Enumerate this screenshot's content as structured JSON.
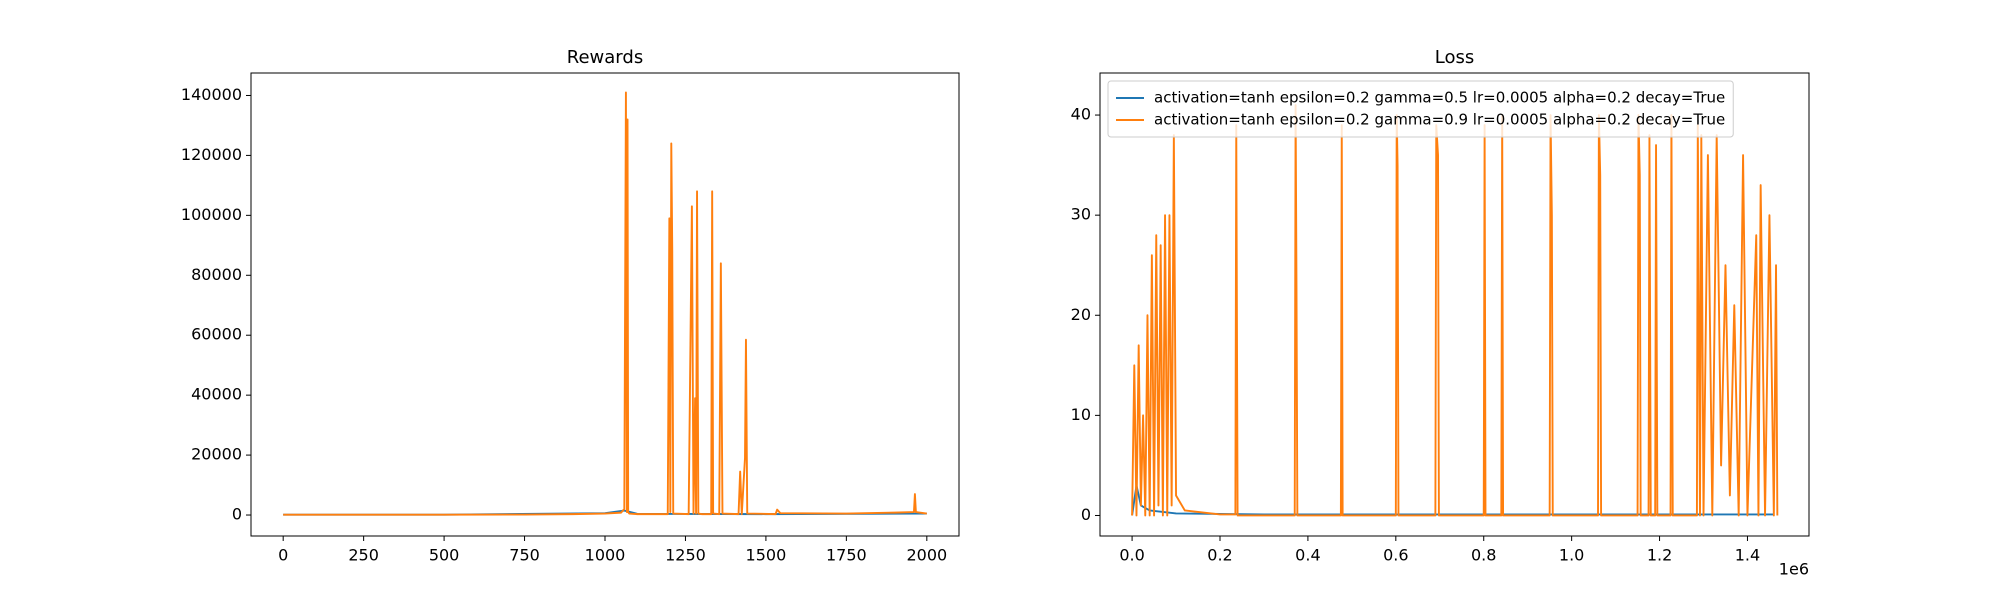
{
  "chart_data": [
    {
      "type": "line",
      "title": "Rewards",
      "xlim": [
        -100,
        2100
      ],
      "ylim": [
        -7000,
        147500
      ],
      "xticks": [
        0,
        250,
        500,
        750,
        1000,
        1250,
        1500,
        1750,
        2000
      ],
      "yticks": [
        0,
        20000,
        40000,
        60000,
        80000,
        100000,
        120000,
        140000
      ],
      "series": [
        {
          "color": "#1f77b4",
          "x": [
            0,
            500,
            1000,
            1060,
            1100,
            1500,
            1800,
            2000
          ],
          "values": [
            100,
            100,
            600,
            1500,
            400,
            300,
            400,
            500
          ]
        },
        {
          "color": "#ff7f0e",
          "x": [
            0,
            250,
            500,
            750,
            900,
            1000,
            1050,
            1060,
            1065,
            1068,
            1070,
            1072,
            1075,
            1100,
            1195,
            1200,
            1203,
            1206,
            1209,
            1212,
            1260,
            1270,
            1275,
            1280,
            1283,
            1286,
            1290,
            1300,
            1330,
            1333,
            1336,
            1355,
            1360,
            1365,
            1415,
            1420,
            1425,
            1435,
            1438,
            1442,
            1530,
            1535,
            1545,
            1750,
            1900,
            1960,
            1963,
            1966,
            2000
          ],
          "values": [
            100,
            100,
            100,
            150,
            300,
            500,
            800,
            2000,
            141000,
            1000,
            132000,
            1000,
            500,
            300,
            300,
            99000,
            1000,
            124000,
            88000,
            500,
            300,
            103000,
            500,
            39000,
            500,
            108000,
            500,
            300,
            300,
            108000,
            500,
            300,
            84000,
            500,
            300,
            14500,
            300,
            19000,
            58500,
            500,
            300,
            1800,
            600,
            500,
            800,
            1000,
            7000,
            1000,
            500
          ]
        }
      ]
    },
    {
      "type": "line",
      "title": "Loss",
      "xlim": [
        -73000,
        1540000
      ],
      "ylim": [
        -2.05,
        44.2
      ],
      "xticks": [
        {
          "value": 0,
          "label": "0.0"
        },
        {
          "value": 200000,
          "label": "0.2"
        },
        {
          "value": 400000,
          "label": "0.4"
        },
        {
          "value": 600000,
          "label": "0.6"
        },
        {
          "value": 800000,
          "label": "0.8"
        },
        {
          "value": 1000000,
          "label": "1.0"
        },
        {
          "value": 1200000,
          "label": "1.2"
        },
        {
          "value": 1400000,
          "label": "1.4"
        }
      ],
      "x_offset_label": "1e6",
      "yticks": [
        0,
        10,
        20,
        30,
        40
      ],
      "legend": "upper left",
      "series": [
        {
          "name": "activation=tanh epsilon=0.2 gamma=0.5 lr=0.0005 alpha=0.2 decay=True",
          "color": "#1f77b4",
          "x": [
            0,
            10000,
            20000,
            40000,
            100000,
            300000,
            600000,
            900000,
            1200000,
            1460000
          ],
          "values": [
            0,
            3,
            1,
            0.5,
            0.2,
            0.1,
            0.1,
            0.1,
            0.1,
            0.1
          ]
        },
        {
          "name": "activation=tanh epsilon=0.2 gamma=0.9 lr=0.0005 alpha=0.2 decay=True",
          "color": "#ff7f0e",
          "x": [
            0,
            5000,
            10000,
            15000,
            20000,
            25000,
            30000,
            35000,
            40000,
            45000,
            50000,
            55000,
            60000,
            65000,
            70000,
            75000,
            80000,
            85000,
            90000,
            95000,
            100000,
            120000,
            200000,
            235000,
            237000,
            240000,
            370000,
            372000,
            374000,
            376000,
            475000,
            477000,
            479000,
            600000,
            602000,
            604000,
            606000,
            690000,
            692000,
            696000,
            698000,
            800000,
            802000,
            804000,
            840000,
            842000,
            844000,
            950000,
            952000,
            955000,
            957000,
            1060000,
            1062000,
            1065000,
            1067000,
            1150000,
            1152000,
            1155000,
            1157000,
            1175000,
            1177000,
            1180000,
            1190000,
            1192000,
            1195000,
            1225000,
            1227000,
            1230000,
            1285000,
            1287000,
            1292000,
            1295000,
            1300000,
            1310000,
            1320000,
            1330000,
            1340000,
            1350000,
            1360000,
            1370000,
            1380000,
            1390000,
            1400000,
            1420000,
            1425000,
            1430000,
            1440000,
            1450000,
            1460000,
            1465000,
            1468000
          ],
          "values": [
            0,
            15,
            0,
            17,
            1,
            10,
            0,
            20,
            0,
            26,
            0,
            28,
            1,
            27,
            0,
            30,
            0,
            30,
            1,
            38,
            2,
            0.5,
            0.1,
            0.1,
            39,
            0,
            0,
            41,
            23,
            0,
            0,
            39,
            0,
            0,
            40,
            35,
            0,
            0,
            39,
            36,
            0,
            0,
            39,
            0,
            0,
            40,
            0,
            0,
            40,
            30,
            0,
            0,
            40,
            34,
            0,
            0,
            40,
            34,
            0,
            0,
            38,
            0,
            0,
            37,
            0,
            0,
            40,
            0,
            0,
            39,
            0,
            38,
            0,
            36,
            0,
            38,
            5,
            25,
            2,
            21,
            0,
            36,
            0,
            28,
            0,
            33,
            0,
            30,
            0,
            25,
            0
          ]
        }
      ]
    }
  ]
}
